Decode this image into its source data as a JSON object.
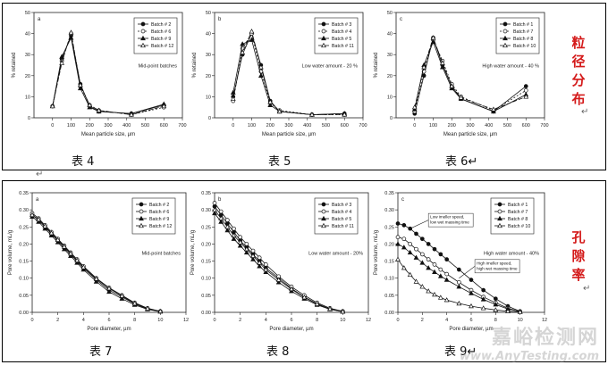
{
  "captions": {
    "t4": "表 4",
    "t5": "表 5",
    "t6": "表 6↵",
    "t7": "表 7",
    "t8": "表 8",
    "t9": "表 9↵",
    "side_top": [
      "粒",
      "径",
      "分",
      "布"
    ],
    "side_bottom": [
      "孔",
      "隙",
      "率"
    ],
    "arrow": "↵",
    "wm_cn": "嘉峪检测网",
    "wm_en": "www.AnyTesting.com"
  },
  "chart_data": [
    {
      "type": "line",
      "id": "c4",
      "panel": "a",
      "title": "Mid-point batches",
      "xlabel": "Mean particle size, µm",
      "ylabel": "% retained",
      "xlim": [
        -100,
        700
      ],
      "ylim": [
        0,
        50
      ],
      "xticks": [
        0,
        100,
        200,
        300,
        400,
        500,
        600,
        700
      ],
      "yticks": [
        0,
        10,
        20,
        30,
        40,
        50
      ],
      "tick_fmt": "int",
      "ytick_suffix": "",
      "legend_pos": "top-right",
      "x": [
        0,
        50,
        100,
        150,
        200,
        250,
        425,
        600
      ],
      "series": [
        {
          "name": "Batch # 2",
          "marker": "filled-circle",
          "dash": "",
          "values": [
            5.5,
            28,
            39,
            16,
            5.5,
            3,
            2,
            6
          ]
        },
        {
          "name": "Batch # 6",
          "marker": "open-circle",
          "dash": "2,2",
          "values": [
            5.5,
            27,
            40,
            15,
            6,
            3.5,
            1.5,
            5
          ]
        },
        {
          "name": "Batch # 9",
          "marker": "filled-triangle",
          "dash": "",
          "values": [
            5.5,
            29,
            38,
            14,
            5,
            3,
            2,
            6.5
          ]
        },
        {
          "name": "Batch # 12",
          "marker": "open-triangle",
          "dash": "5,2",
          "values": [
            5.5,
            26,
            40.5,
            15.5,
            6,
            3.5,
            1.5,
            5.5
          ]
        }
      ]
    },
    {
      "type": "line",
      "id": "c5",
      "panel": "b",
      "title": "Low water amount - 20 %",
      "xlabel": "Mean particle size, µm",
      "ylabel": "% retained",
      "xlim": [
        -100,
        700
      ],
      "ylim": [
        0,
        50
      ],
      "xticks": [
        0,
        100,
        200,
        300,
        400,
        500,
        600,
        700
      ],
      "yticks": [
        0,
        10,
        20,
        30,
        40,
        50
      ],
      "tick_fmt": "int",
      "ytick_suffix": "",
      "legend_pos": "top-right",
      "x": [
        0,
        50,
        100,
        150,
        200,
        250,
        425,
        600
      ],
      "series": [
        {
          "name": "Batch # 3",
          "marker": "filled-circle",
          "dash": "",
          "values": [
            10,
            30,
            40,
            25,
            8,
            3,
            1.5,
            2
          ]
        },
        {
          "name": "Batch # 4",
          "marker": "open-circle",
          "dash": "2,2",
          "values": [
            8,
            33,
            40,
            22,
            7,
            3.5,
            1.5,
            1.5
          ]
        },
        {
          "name": "Batch # 5",
          "marker": "filled-triangle",
          "dash": "",
          "values": [
            12,
            35,
            37,
            20,
            6,
            3,
            1.5,
            2
          ]
        },
        {
          "name": "Batch # 11",
          "marker": "open-triangle",
          "dash": "5,2",
          "values": [
            9,
            31,
            41,
            24,
            7.5,
            3,
            1.5,
            1.5
          ]
        }
      ]
    },
    {
      "type": "line",
      "id": "c6",
      "panel": "c",
      "title": "High water amount - 40 %",
      "xlabel": "Mean particle size, µm",
      "ylabel": "% retained",
      "xlim": [
        -100,
        700
      ],
      "ylim": [
        0,
        50
      ],
      "xticks": [
        0,
        100,
        200,
        300,
        400,
        500,
        600,
        700
      ],
      "yticks": [
        0,
        10,
        20,
        30,
        40,
        50
      ],
      "tick_fmt": "int",
      "ytick_suffix": "",
      "legend_pos": "top-right",
      "x": [
        0,
        50,
        100,
        150,
        200,
        250,
        425,
        600
      ],
      "series": [
        {
          "name": "Batch # 1",
          "marker": "filled-circle",
          "dash": "",
          "values": [
            2,
            20,
            38,
            25,
            15,
            9,
            3,
            15
          ]
        },
        {
          "name": "Batch # 7",
          "marker": "open-circle",
          "dash": "2,2",
          "values": [
            3,
            22,
            37,
            27,
            16,
            10,
            3.5,
            13
          ]
        },
        {
          "name": "Batch # 8",
          "marker": "filled-triangle",
          "dash": "",
          "values": [
            4,
            25,
            36,
            24,
            14,
            9,
            3,
            11
          ]
        },
        {
          "name": "Batch # 10",
          "marker": "open-triangle",
          "dash": "5,2",
          "values": [
            5,
            24,
            38,
            26,
            15,
            9.5,
            4,
            10
          ]
        }
      ]
    },
    {
      "type": "line",
      "id": "c7",
      "panel": "a",
      "title": "Mid-point batches",
      "xlabel": "Pore diameter, µm",
      "ylabel": "Pore volume, mL/g",
      "xlim": [
        0,
        12
      ],
      "ylim": [
        0,
        0.35
      ],
      "xticks": [
        0,
        2,
        4,
        6,
        8,
        10,
        12
      ],
      "yticks": [
        0,
        0.05,
        0.1,
        0.15,
        0.2,
        0.25,
        0.3,
        0.35
      ],
      "tick_fmt": "dec2",
      "legend_pos": "top-right",
      "x": [
        0,
        0.5,
        1,
        1.5,
        2,
        2.5,
        3,
        3.5,
        4,
        5,
        6,
        7,
        8,
        9,
        10
      ],
      "series": [
        {
          "name": "Batch # 2",
          "marker": "filled-circle",
          "dash": "",
          "values": [
            0.285,
            0.27,
            0.25,
            0.23,
            0.21,
            0.19,
            0.17,
            0.15,
            0.13,
            0.095,
            0.065,
            0.045,
            0.025,
            0.01,
            0.003
          ]
        },
        {
          "name": "Batch # 6",
          "marker": "open-circle",
          "dash": "",
          "values": [
            0.29,
            0.275,
            0.255,
            0.235,
            0.215,
            0.195,
            0.175,
            0.155,
            0.135,
            0.1,
            0.072,
            0.05,
            0.028,
            0.012,
            0.003
          ]
        },
        {
          "name": "Batch # 9",
          "marker": "filled-triangle",
          "dash": "",
          "values": [
            0.28,
            0.265,
            0.245,
            0.225,
            0.205,
            0.185,
            0.165,
            0.145,
            0.125,
            0.09,
            0.06,
            0.04,
            0.022,
            0.009,
            0.002
          ]
        },
        {
          "name": "Batch # 12",
          "marker": "open-triangle",
          "dash": "",
          "values": [
            0.285,
            0.272,
            0.252,
            0.232,
            0.212,
            0.192,
            0.172,
            0.152,
            0.132,
            0.098,
            0.07,
            0.048,
            0.026,
            0.011,
            0.003
          ]
        }
      ]
    },
    {
      "type": "line",
      "id": "c8",
      "panel": "b",
      "title": "Low water amount - 20%",
      "xlabel": "Pore diameter, µm",
      "ylabel": "Pore volume, mL/g",
      "xlim": [
        0,
        12
      ],
      "ylim": [
        0,
        0.35
      ],
      "xticks": [
        0,
        2,
        4,
        6,
        8,
        10,
        12
      ],
      "yticks": [
        0,
        0.05,
        0.1,
        0.15,
        0.2,
        0.25,
        0.3,
        0.35
      ],
      "tick_fmt": "dec2",
      "legend_pos": "top-right",
      "x": [
        0,
        0.5,
        1,
        1.5,
        2,
        2.5,
        3,
        3.5,
        4,
        5,
        6,
        7,
        8,
        9,
        10
      ],
      "series": [
        {
          "name": "Batch # 3",
          "marker": "filled-circle",
          "dash": "",
          "values": [
            0.31,
            0.285,
            0.26,
            0.235,
            0.21,
            0.19,
            0.17,
            0.15,
            0.13,
            0.1,
            0.07,
            0.045,
            0.025,
            0.01,
            0.003
          ]
        },
        {
          "name": "Batch # 4",
          "marker": "open-circle",
          "dash": "",
          "values": [
            0.32,
            0.295,
            0.27,
            0.245,
            0.22,
            0.2,
            0.18,
            0.16,
            0.14,
            0.105,
            0.075,
            0.05,
            0.028,
            0.012,
            0.003
          ]
        },
        {
          "name": "Batch # 5",
          "marker": "filled-triangle",
          "dash": "",
          "values": [
            0.29,
            0.265,
            0.24,
            0.215,
            0.195,
            0.175,
            0.155,
            0.135,
            0.118,
            0.088,
            0.062,
            0.04,
            0.022,
            0.009,
            0.002
          ]
        },
        {
          "name": "Batch # 11",
          "marker": "open-triangle",
          "dash": "",
          "values": [
            0.3,
            0.275,
            0.25,
            0.225,
            0.205,
            0.185,
            0.165,
            0.145,
            0.125,
            0.095,
            0.068,
            0.044,
            0.024,
            0.01,
            0.002
          ]
        }
      ]
    },
    {
      "type": "line",
      "id": "c9",
      "panel": "c",
      "title": "High water amount - 40%",
      "xlabel": "Pore diameter, µm",
      "ylabel": "Pore volume, mL/g",
      "xlim": [
        0,
        12
      ],
      "ylim": [
        0,
        0.35
      ],
      "xticks": [
        0,
        2,
        4,
        6,
        8,
        10,
        12
      ],
      "yticks": [
        0,
        0.05,
        0.1,
        0.15,
        0.2,
        0.25,
        0.3,
        0.35
      ],
      "tick_fmt": "dec2",
      "legend_pos": "top-right",
      "annotations": [
        {
          "text": [
            "Low imeller speed,",
            "low wet massing time"
          ],
          "x": 2.5,
          "y": 0.27,
          "to_x": 1.0,
          "to_y": 0.245
        },
        {
          "text": [
            "High imeller speed,",
            "high wet massing time"
          ],
          "x": 6.3,
          "y": 0.135,
          "to_x": 5.0,
          "to_y": 0.1
        }
      ],
      "x": [
        0,
        0.5,
        1,
        1.5,
        2,
        2.5,
        3,
        3.5,
        4,
        5,
        6,
        7,
        8,
        9,
        10
      ],
      "series": [
        {
          "name": "Batch # 1",
          "marker": "filled-circle",
          "dash": "",
          "values": [
            0.26,
            0.255,
            0.245,
            0.23,
            0.215,
            0.2,
            0.185,
            0.17,
            0.155,
            0.125,
            0.095,
            0.065,
            0.04,
            0.018,
            0.003
          ]
        },
        {
          "name": "Batch # 7",
          "marker": "open-circle",
          "dash": "",
          "values": [
            0.22,
            0.215,
            0.2,
            0.185,
            0.17,
            0.155,
            0.14,
            0.125,
            0.112,
            0.088,
            0.065,
            0.045,
            0.028,
            0.012,
            0.002
          ]
        },
        {
          "name": "Batch # 8",
          "marker": "filled-triangle",
          "dash": "",
          "values": [
            0.2,
            0.19,
            0.175,
            0.16,
            0.145,
            0.13,
            0.118,
            0.106,
            0.095,
            0.075,
            0.056,
            0.038,
            0.023,
            0.01,
            0.002
          ]
        },
        {
          "name": "Batch # 10",
          "marker": "open-triangle",
          "dash": "",
          "values": [
            0.155,
            0.13,
            0.11,
            0.09,
            0.075,
            0.062,
            0.052,
            0.043,
            0.036,
            0.026,
            0.018,
            0.012,
            0.007,
            0.003,
            0.001
          ]
        }
      ]
    }
  ]
}
